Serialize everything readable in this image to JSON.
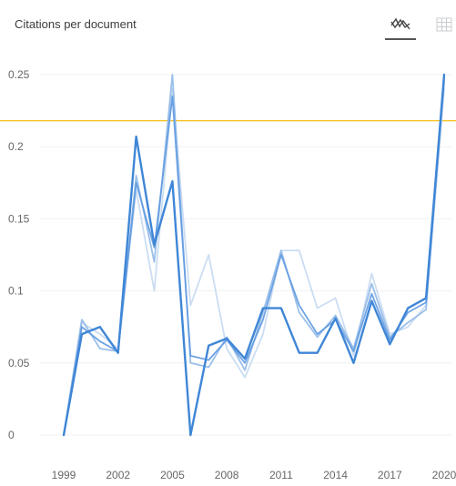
{
  "header": {
    "title": "Citations per document",
    "tools": [
      {
        "icon": "line-chart-icon",
        "active": true
      },
      {
        "icon": "table-icon",
        "active": false
      }
    ]
  },
  "chart_data": {
    "type": "line",
    "title": "Citations per document",
    "xlabel": "",
    "ylabel": "",
    "x": [
      1999,
      2000,
      2001,
      2002,
      2003,
      2004,
      2005,
      2006,
      2007,
      2008,
      2009,
      2010,
      2011,
      2012,
      2013,
      2014,
      2015,
      2016,
      2017,
      2018,
      2019,
      2020
    ],
    "x_ticks": [
      "1999",
      "2002",
      "2005",
      "2008",
      "2011",
      "2014",
      "2017",
      "2020"
    ],
    "y_ticks": [
      "0",
      "0.05",
      "0.1",
      "0.15",
      "0.2",
      "0.25"
    ],
    "ylim": [
      0,
      0.25
    ],
    "grid": true,
    "reference_line": {
      "value": 0.218,
      "color": "#f5b800"
    },
    "series": [
      {
        "color": "#c5d9f1",
        "values": [
          0,
          0.078,
          0.07,
          0.06,
          0.17,
          0.1,
          0.24,
          0.09,
          0.125,
          0.06,
          0.04,
          0.07,
          0.128,
          0.128,
          0.088,
          0.095,
          0.055,
          0.112,
          0.07,
          0.075,
          0.09,
          0.24
        ]
      },
      {
        "color": "#8fb8e8",
        "values": [
          0,
          0.08,
          0.06,
          0.058,
          0.18,
          0.12,
          0.25,
          0.05,
          0.047,
          0.068,
          0.045,
          0.085,
          0.128,
          0.085,
          0.068,
          0.083,
          0.06,
          0.105,
          0.068,
          0.078,
          0.087,
          0.245
        ]
      },
      {
        "color": "#5e99e0",
        "values": [
          0,
          0.075,
          0.065,
          0.058,
          0.175,
          0.13,
          0.235,
          0.055,
          0.052,
          0.066,
          0.05,
          0.08,
          0.125,
          0.09,
          0.07,
          0.08,
          0.058,
          0.098,
          0.066,
          0.085,
          0.092,
          0.248
        ]
      },
      {
        "color": "#3f86d6",
        "values": [
          0,
          0.07,
          0.075,
          0.057,
          0.207,
          0.132,
          0.176,
          0,
          0.062,
          0.067,
          0.053,
          0.088,
          0.088,
          0.057,
          0.057,
          0.081,
          0.05,
          0.093,
          0.063,
          0.088,
          0.095,
          0.25
        ]
      }
    ]
  }
}
